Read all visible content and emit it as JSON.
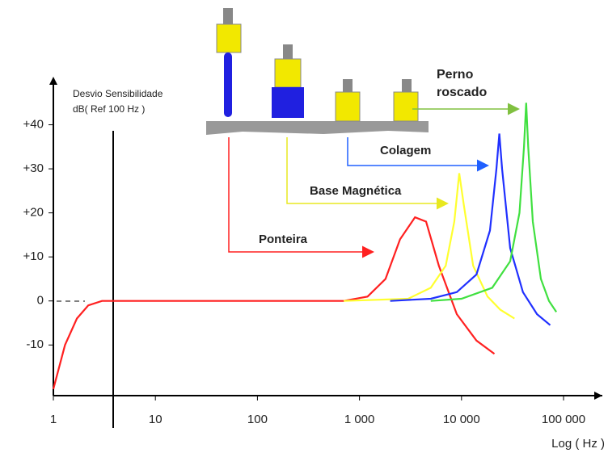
{
  "chart_data": {
    "type": "line",
    "log_x": true,
    "annotations": [
      "Desvio Sensibilidade",
      "dB( Ref 100 Hz )"
    ],
    "xlabel": "Log ( Hz )",
    "xlim": [
      1,
      240000
    ],
    "ylim": [
      -21.5,
      50
    ],
    "xticks": [
      1,
      10,
      100,
      {
        "value": 1000,
        "label": "1 000"
      },
      {
        "value": 10000,
        "label": "10 000"
      },
      {
        "value": 100000,
        "label": "100 000"
      }
    ],
    "yticks": [
      -10,
      0,
      {
        "value": 10,
        "label": "+10"
      },
      {
        "value": 20,
        "label": "+20"
      },
      {
        "value": 30,
        "label": "+30"
      },
      {
        "value": 40,
        "label": "+40"
      }
    ],
    "series": [
      {
        "name": "Ponteira",
        "color": "#ff2020",
        "x": [
          1,
          1.3,
          1.7,
          2.2,
          3,
          700,
          1200,
          1800,
          2500,
          3500,
          4500,
          6000,
          9000,
          14000,
          21000
        ],
        "values": [
          -20,
          -10,
          -4,
          -1,
          0,
          0,
          1,
          5,
          14,
          19,
          18,
          8,
          -3,
          -9,
          -12
        ]
      },
      {
        "name": "Base Magnética",
        "color": "#ffff30",
        "x": [
          700,
          3000,
          5000,
          7000,
          8500,
          9500,
          10500,
          13000,
          18000,
          24000,
          33000
        ],
        "values": [
          0,
          0.5,
          3,
          8,
          18,
          29,
          22,
          8,
          1,
          -2,
          -4
        ]
      },
      {
        "name": "Colagem",
        "color": "#2030ff",
        "x": [
          2000,
          5000,
          9000,
          14000,
          19000,
          22000,
          23500,
          25000,
          30000,
          40000,
          55000,
          74000
        ],
        "values": [
          0,
          0.5,
          2,
          6,
          16,
          30,
          38,
          30,
          12,
          2,
          -3,
          -5.5
        ]
      },
      {
        "name": "Perno roscado",
        "color": "#40e040",
        "x": [
          5000,
          10000,
          20000,
          30000,
          37000,
          41000,
          43000,
          45000,
          50000,
          60000,
          72000,
          85000
        ],
        "values": [
          0,
          0.5,
          3,
          9,
          20,
          35,
          45,
          35,
          18,
          5,
          0,
          -2.5
        ]
      }
    ]
  }
}
